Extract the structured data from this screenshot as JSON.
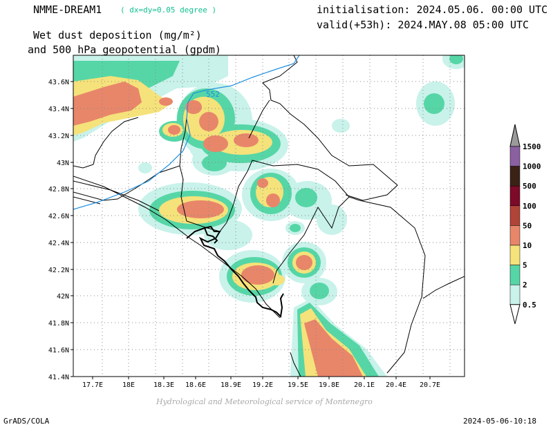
{
  "header": {
    "model": "NMME-DREAM1",
    "resolution": "( dx=dy=0.05 degree )",
    "field_line1": "Wet dust deposition (mg/m²)",
    "field_line2": "and 500 hPa geopotential (gpdm)",
    "initialisation": "initialisation: 2024.05.06. 00:00 UTC",
    "valid": "valid(+53h): 2024.MAY.08 05:00 UTC"
  },
  "map": {
    "lon_ticks": [
      "17.7E",
      "18E",
      "18.3E",
      "18.6E",
      "18.9E",
      "19.2E",
      "19.5E",
      "19.8E",
      "20.1E",
      "20.4E",
      "20.7E"
    ],
    "lat_ticks": [
      "43.6N",
      "43.4N",
      "43.2N",
      "43N",
      "42.8N",
      "42.6N",
      "42.4N",
      "42.2N",
      "42N",
      "41.8N",
      "41.6N",
      "41.4N"
    ],
    "contour_label": "552",
    "contour_color": "#1e90e0"
  },
  "colorbar": {
    "levels": [
      "1500",
      "1000",
      "500",
      "100",
      "50",
      "10",
      "5",
      "2",
      "0.5"
    ],
    "colors": [
      "#9a9a9a",
      "#8a60a0",
      "#3b2216",
      "#7c0a28",
      "#b04438",
      "#e8866a",
      "#f5e27a",
      "#56d6a6",
      "#c8f2ea",
      "#ffffff"
    ]
  },
  "footer": {
    "credit": "Hydrological and Meteorological service of Montenegro",
    "software": "GrADS/COLA",
    "timestamp": "2024-05-06-10:18"
  }
}
